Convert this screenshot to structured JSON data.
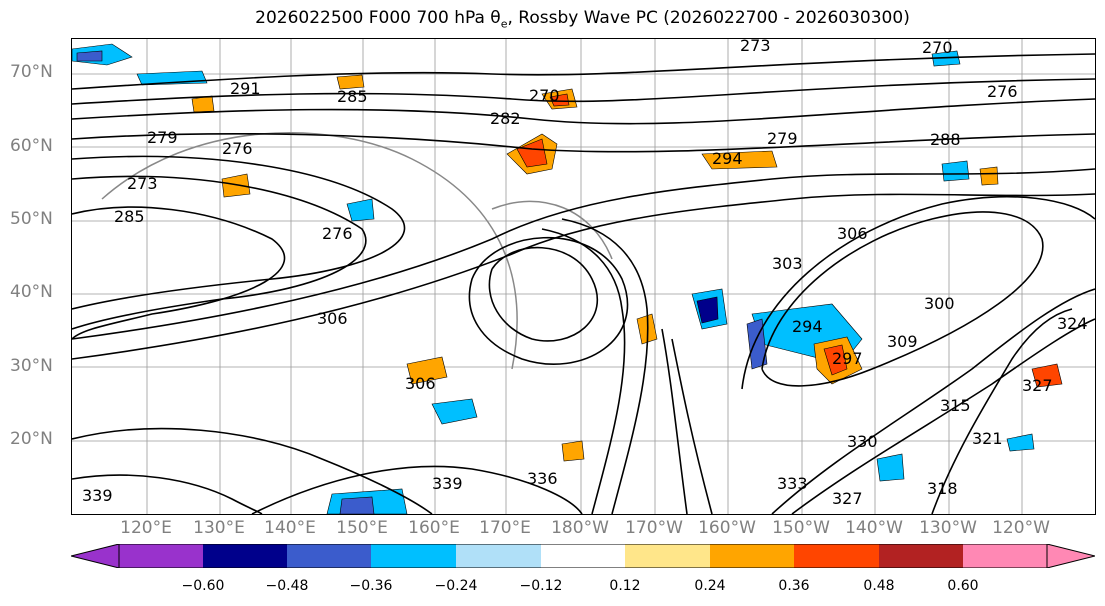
{
  "title": "2026022500 F000 700 hPa θe, Rossby Wave PC (2026022700 - 2026030300)",
  "title_parts": {
    "prefix": "2026022500 F000 700 hPa ",
    "symbol": "θ",
    "subscript": "e",
    "suffix": ", Rossby Wave PC (2026022700 - 2026030300)"
  },
  "map": {
    "lat_labels": [
      "70°N",
      "60°N",
      "50°N",
      "40°N",
      "30°N",
      "20°N"
    ],
    "lon_labels": [
      "120°E",
      "130°E",
      "140°E",
      "150°E",
      "160°E",
      "170°E",
      "180°W",
      "170°W",
      "160°W",
      "150°W",
      "140°W",
      "130°W",
      "120°W"
    ],
    "contour_labels": [
      "273",
      "270",
      "276",
      "291",
      "285",
      "270",
      "282",
      "279",
      "288",
      "279",
      "276",
      "273",
      "285",
      "294",
      "276",
      "294",
      "303",
      "306",
      "300",
      "297",
      "309",
      "306",
      "315",
      "321",
      "324",
      "327",
      "330",
      "333",
      "339",
      "339",
      "336",
      "318",
      "327",
      "306"
    ],
    "colors": {
      "contour": "#000000",
      "grid": "#808080",
      "coast": "#000000"
    }
  },
  "colorbar": {
    "levels": [
      "−0.60",
      "−0.48",
      "−0.36",
      "−0.24",
      "−0.12",
      "0.12",
      "0.24",
      "0.36",
      "0.48",
      "0.60"
    ],
    "colors": [
      "#9932cc",
      "#00008b",
      "#3b5ccc",
      "#00bfff",
      "#b0e0f8",
      "#ffffff",
      "#ffe68a",
      "#ffa500",
      "#ff4500",
      "#b22222",
      "#ff88b4",
      "#ff88b4"
    ]
  }
}
